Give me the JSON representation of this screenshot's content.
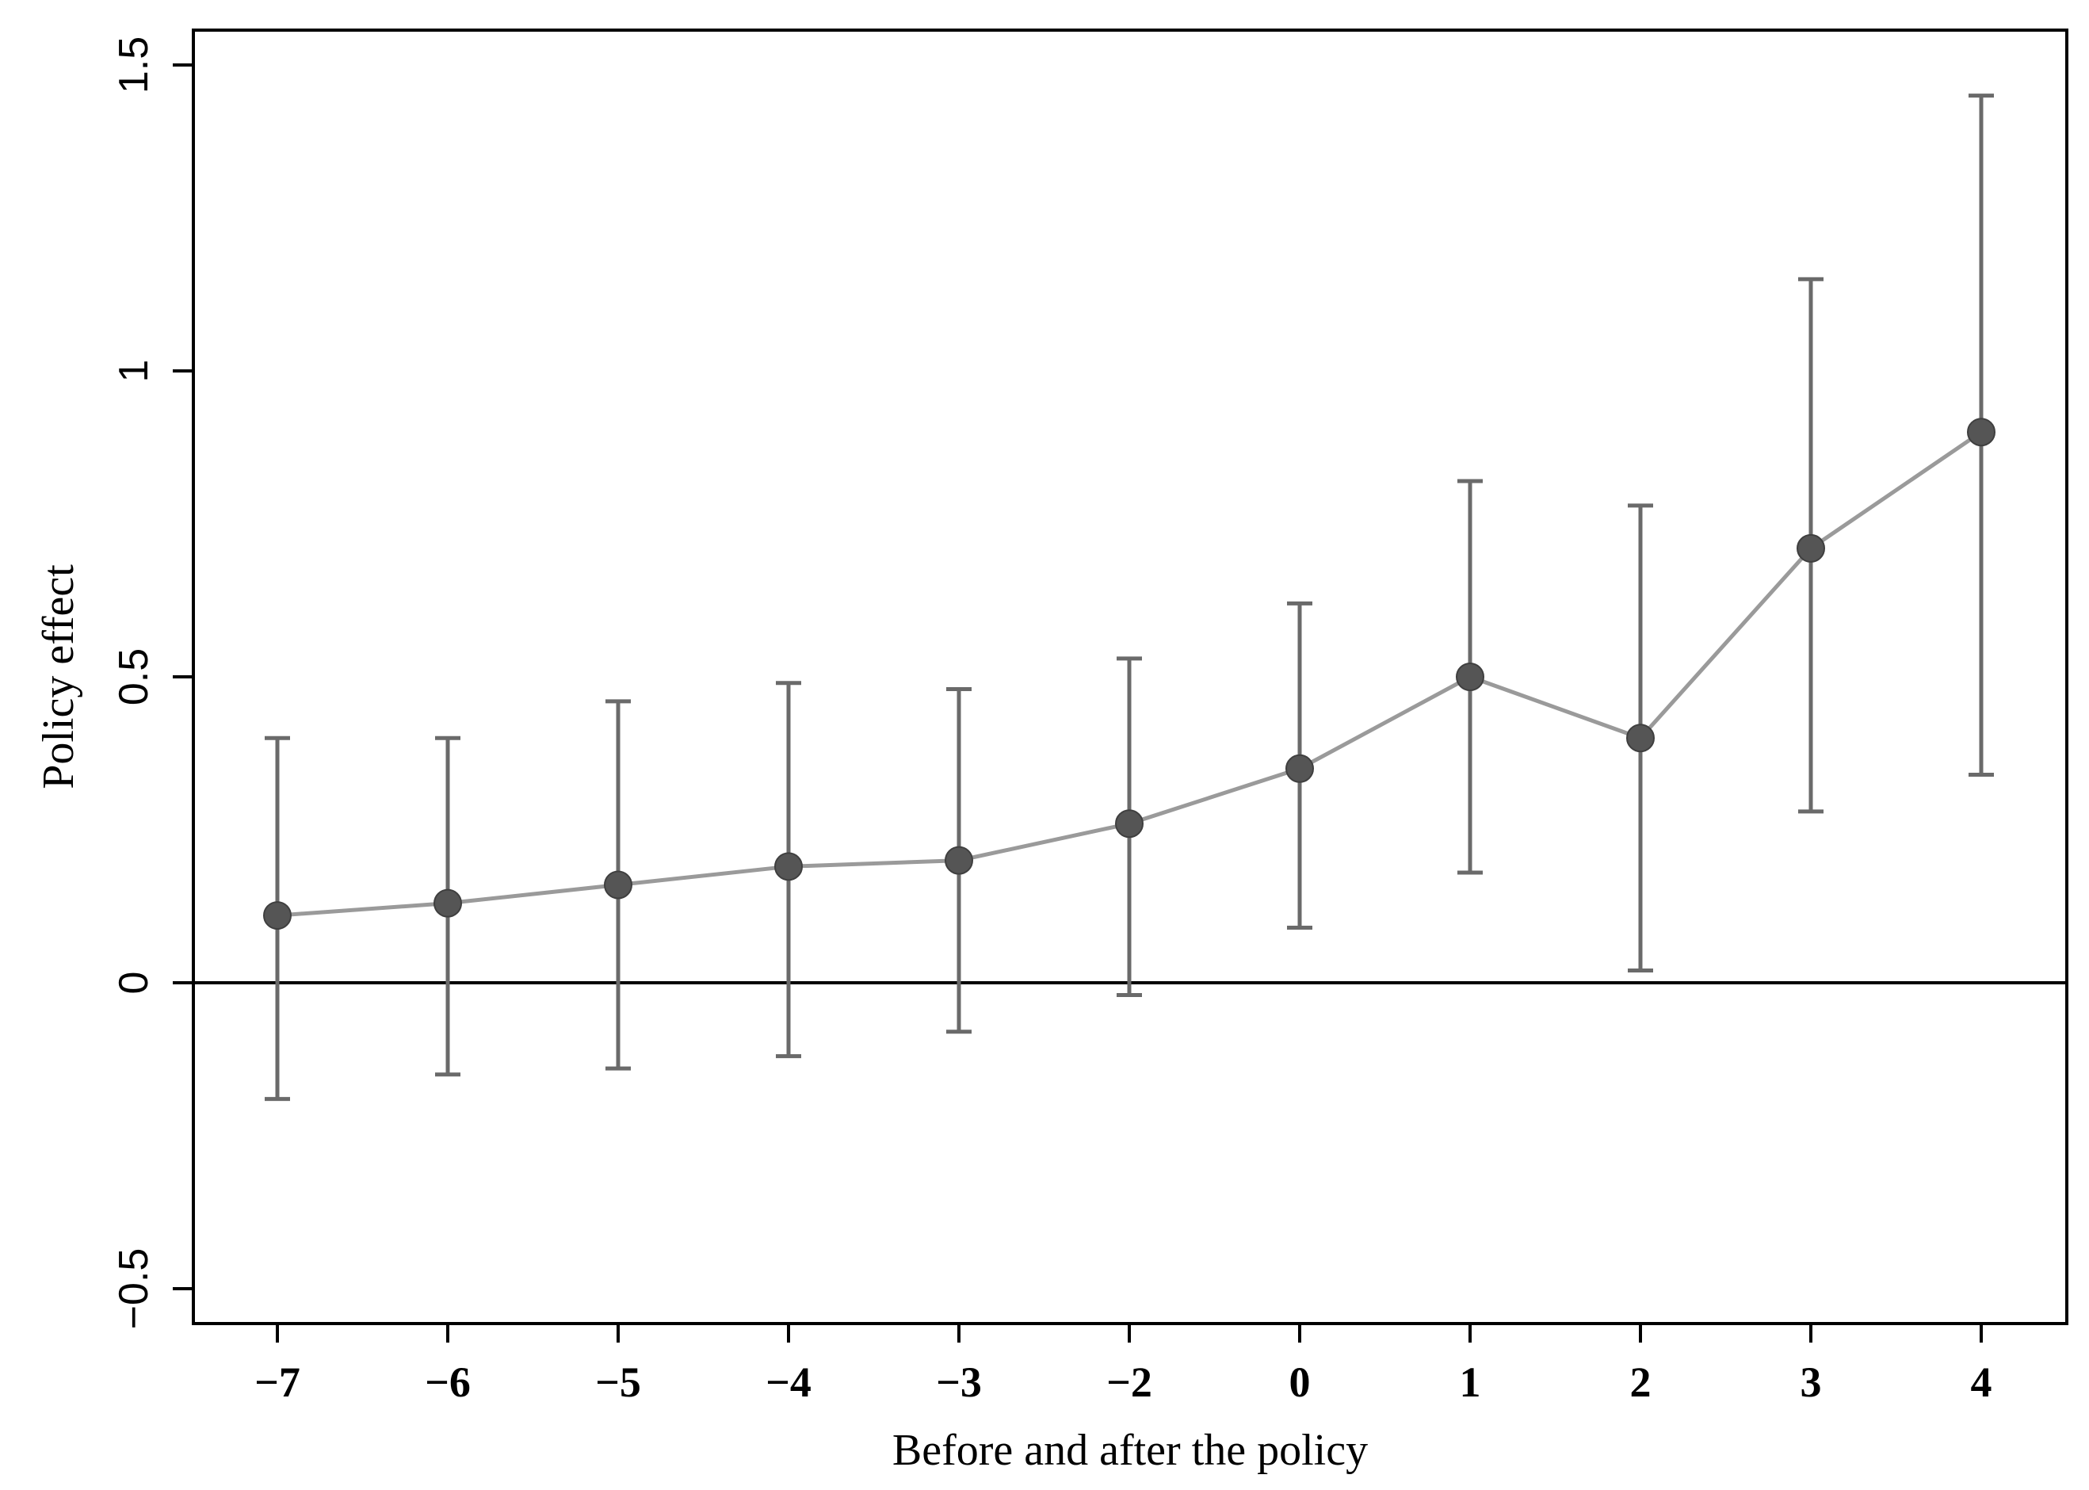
{
  "chart_data": {
    "type": "scatter",
    "xlabel": "Before and after the policy",
    "ylabel": "Policy effect",
    "categories": [
      "−7",
      "−6",
      "−5",
      "−4",
      "−3",
      "−2",
      "0",
      "1",
      "2",
      "3",
      "4"
    ],
    "series": [
      {
        "values": [
          0.11,
          0.13,
          0.16,
          0.19,
          0.2,
          0.26,
          0.35,
          0.5,
          0.4,
          0.71,
          0.9
        ],
        "lower": [
          -0.19,
          -0.15,
          -0.14,
          -0.12,
          -0.08,
          -0.02,
          0.09,
          0.18,
          0.02,
          0.28,
          0.34
        ],
        "upper": [
          0.4,
          0.4,
          0.46,
          0.49,
          0.48,
          0.53,
          0.62,
          0.82,
          0.78,
          1.15,
          1.45
        ]
      }
    ],
    "yticks": [
      -0.5,
      0,
      0.5,
      1,
      1.5
    ],
    "ytick_labels": [
      "−0.5",
      "0",
      "0.5",
      "1",
      "1.5"
    ],
    "ylim": [
      -0.55,
      1.56
    ],
    "reference_line_y": 0,
    "grid": false,
    "colors": {
      "marker": "#555555",
      "line": "#9a9a9a",
      "errorbar": "#6a6a6a",
      "axis": "#000000"
    }
  }
}
